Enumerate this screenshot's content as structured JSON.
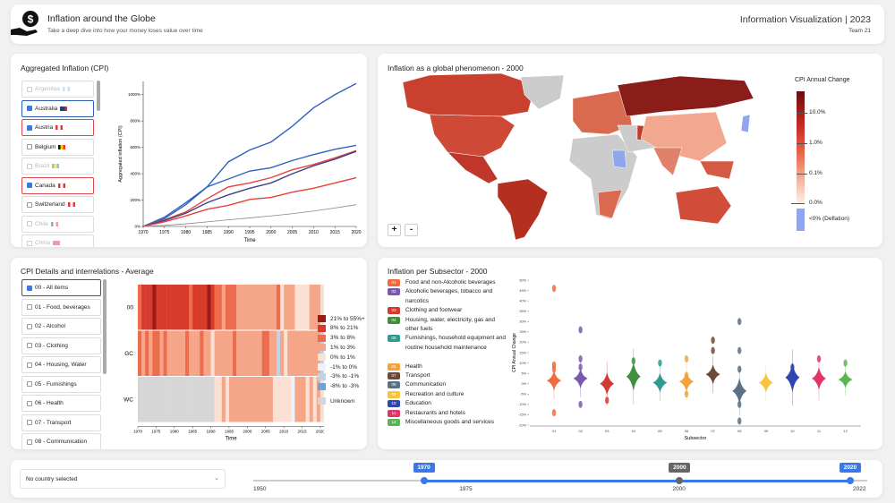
{
  "header": {
    "title": "Inflation around the Globe",
    "subtitle": "Take a deep dive into how your money loses value over time",
    "course": "Information Visualization | 2023",
    "team": "Team 21",
    "logo_icon": "money-hand-icon"
  },
  "aggregated": {
    "title": "Aggregated Inflation (CPI)",
    "countries": [
      {
        "name": "Argentina",
        "state": "disabled",
        "flag": [
          "#8ec5ea",
          "#fff",
          "#8ec5ea"
        ]
      },
      {
        "name": "Australia",
        "state": "checked",
        "border": "#2a5db0",
        "flag": [
          "#1c3c8c",
          "#1c3c8c",
          "#c33"
        ]
      },
      {
        "name": "Austria",
        "state": "checked",
        "border": "#e0474c",
        "flag": [
          "#e33",
          "#fff",
          "#e33"
        ]
      },
      {
        "name": "Belgium",
        "state": "unchecked",
        "flag": [
          "#111",
          "#f5d000",
          "#e33"
        ]
      },
      {
        "name": "Brazil",
        "state": "disabled",
        "flag": [
          "#2a9a3a",
          "#f5d000",
          "#2a9a3a"
        ]
      },
      {
        "name": "Canada",
        "state": "checked",
        "border": "#e0474c",
        "flag": [
          "#e33",
          "#fff",
          "#e33"
        ]
      },
      {
        "name": "Switzerland",
        "state": "unchecked",
        "flag": [
          "#e33",
          "#fff",
          "#e33"
        ]
      },
      {
        "name": "Chile",
        "state": "disabled",
        "flag": [
          "#2a4ca8",
          "#fff",
          "#e33"
        ]
      },
      {
        "name": "China",
        "state": "disabled",
        "flag": [
          "#e33",
          "#e33",
          "#e33"
        ]
      }
    ],
    "chart_data": {
      "type": "line",
      "xlabel": "Time",
      "ylabel": "Aggregated inflation (CPI)",
      "x": [
        1970,
        1975,
        1980,
        1985,
        1990,
        1995,
        2000,
        2005,
        2010,
        2015,
        2020
      ],
      "xticks": [
        "1970",
        "1975",
        "1980",
        "1985",
        "1990",
        "1995",
        "2000",
        "2005",
        "2010",
        "2015",
        "2020"
      ],
      "yticks": [
        "0%",
        "200%",
        "400%",
        "600%",
        "800%",
        "1000%"
      ],
      "ylim": [
        0,
        1100
      ],
      "series": [
        {
          "color": "#2f62c0",
          "values": [
            0,
            60,
            165,
            300,
            490,
            580,
            640,
            760,
            900,
            1000,
            1085
          ]
        },
        {
          "color": "#2f62c0",
          "values": [
            0,
            70,
            180,
            300,
            360,
            420,
            445,
            500,
            545,
            585,
            615
          ]
        },
        {
          "color": "#e8403a",
          "values": [
            0,
            50,
            110,
            210,
            300,
            330,
            370,
            430,
            470,
            520,
            575
          ]
        },
        {
          "color": "#3a3f8a",
          "values": [
            0,
            45,
            100,
            180,
            240,
            290,
            330,
            400,
            460,
            510,
            570
          ]
        },
        {
          "color": "#e8403a",
          "values": [
            0,
            35,
            80,
            130,
            160,
            205,
            220,
            260,
            290,
            330,
            370
          ]
        },
        {
          "color": "#888",
          "values": [
            0,
            8,
            20,
            35,
            50,
            65,
            80,
            97,
            117,
            140,
            165
          ]
        }
      ]
    }
  },
  "map": {
    "title": "Inflation as a global phenomenon - 2000",
    "legend_title": "CPI Annual Change",
    "legend_ticks": [
      "10.0%",
      "1.0%",
      "0.1%",
      "0.0%"
    ],
    "deflation_label": "<0% (Deflation)",
    "zoom_in": "+",
    "zoom_out": "-",
    "colors": {
      "high": "#6b0d0d",
      "mid": "#e0503c",
      "low": "#fbe8e0",
      "deflation": "#8fa6ef",
      "unknown": "#cccccc"
    }
  },
  "cpi_details": {
    "title": "CPI Details and interrelations - Average",
    "items": [
      {
        "label": "00 - All items",
        "checked": true
      },
      {
        "label": "01 - Food, beverages",
        "checked": false
      },
      {
        "label": "02 - Alcohol",
        "checked": false
      },
      {
        "label": "03 - Clothing",
        "checked": false
      },
      {
        "label": "04 - Housing, Water",
        "checked": false
      },
      {
        "label": "05 - Furnishings",
        "checked": false
      },
      {
        "label": "06 - Health",
        "checked": false
      },
      {
        "label": "07 - Transport",
        "checked": false
      },
      {
        "label": "08 - Communication",
        "checked": false
      }
    ],
    "chart_data": {
      "type": "heatmap",
      "xlabel": "Time",
      "xticks": [
        "1970",
        "1975",
        "1980",
        "1985",
        "1990",
        "1995",
        "2000",
        "2005",
        "2010",
        "2015",
        "2020"
      ],
      "rows": [
        "00",
        "GC",
        "WC"
      ],
      "years_from": 1970,
      "legend": [
        {
          "label": "21% to 55%+",
          "color": "#9b1c17"
        },
        {
          "label": "8% to 21%",
          "color": "#d63b2c"
        },
        {
          "label": "3% to 8%",
          "color": "#ee6c4d"
        },
        {
          "label": "1% to 3%",
          "color": "#f5a588"
        },
        {
          "label": "0% to 1%",
          "color": "#fbe0d4"
        },
        {
          "label": "-1% to 0%",
          "color": "#eef2fb"
        },
        {
          "label": "-3% to -1%",
          "color": "#bcd3ea"
        },
        {
          "label": "-8% to -3%",
          "color": "#6fa3d5"
        },
        {
          "label": "Unknown",
          "color": "#d6d6d6"
        }
      ],
      "values": [
        [
          2,
          1,
          1,
          1,
          0,
          1,
          1,
          1,
          1,
          1,
          1,
          1,
          1,
          1,
          2,
          1,
          1,
          1,
          1,
          0,
          1,
          2,
          2,
          3,
          2,
          2,
          2,
          3,
          3,
          3,
          3,
          3,
          3,
          3,
          3,
          3,
          3,
          3,
          2,
          4,
          3,
          3,
          3,
          4,
          4,
          4,
          4,
          3,
          3,
          3,
          4
        ],
        [
          2,
          3,
          2,
          3,
          2,
          2,
          3,
          2,
          3,
          3,
          3,
          3,
          3,
          2,
          3,
          3,
          3,
          2,
          3,
          3,
          4,
          3,
          3,
          3,
          3,
          3,
          2,
          3,
          3,
          3,
          3,
          3,
          3,
          3,
          2,
          2,
          3,
          3,
          6,
          3,
          4,
          3,
          3,
          3,
          3,
          3,
          3,
          3,
          3,
          3,
          6
        ],
        [
          -1,
          -1,
          -1,
          -1,
          -1,
          -1,
          -1,
          -1,
          -1,
          -1,
          -1,
          -1,
          -1,
          -1,
          -1,
          -1,
          -1,
          -1,
          -1,
          -1,
          -1,
          4,
          4,
          3,
          4,
          3,
          3,
          3,
          3,
          3,
          3,
          3,
          3,
          3,
          3,
          3,
          3,
          4,
          4,
          4,
          4,
          4,
          5,
          3,
          3,
          3,
          4,
          3,
          4,
          3,
          4
        ]
      ]
    }
  },
  "subsector": {
    "title": "Inflation per Subsector - 2000",
    "legend": [
      {
        "code": "01",
        "label": "Food and non-Alcoholic beverages",
        "color": "#f06a3d"
      },
      {
        "code": "02",
        "label": "Alcoholic beverages, tobacco and narcotics",
        "color": "#7b58b0"
      },
      {
        "code": "03",
        "label": "Clothing and footwear",
        "color": "#d23a32"
      },
      {
        "code": "04",
        "label": "Housing, water, electricity, gas and other fuels",
        "color": "#3f8f3c"
      },
      {
        "code": "05",
        "label": "Furnishings, household equipment and routine household maintenance",
        "color": "#2e9b8e"
      },
      {
        "code": "06",
        "label": "Health",
        "color": "#f4a23a"
      },
      {
        "code": "07",
        "label": "Transport",
        "color": "#6b4a3a"
      },
      {
        "code": "08",
        "label": "Communication",
        "color": "#5a7185"
      },
      {
        "code": "09",
        "label": "Recreation and culture",
        "color": "#f8c440"
      },
      {
        "code": "10",
        "label": "Education",
        "color": "#2f46b0"
      },
      {
        "code": "11",
        "label": "Restaurants and hotels",
        "color": "#e0366a"
      },
      {
        "code": "12",
        "label": "Miscellaneous goods and services",
        "color": "#5ab552"
      }
    ],
    "chart_data": {
      "type": "violin",
      "xlabel": "Subsector",
      "ylabel": "CPI Annual Change",
      "categories": [
        "01",
        "02",
        "03",
        "04",
        "05",
        "06",
        "07",
        "08",
        "09",
        "10",
        "11",
        "12"
      ],
      "ylim": [
        -20,
        50
      ],
      "yticks": [
        "-20%",
        "-15%",
        "-10%",
        "-5%",
        "0%",
        "5%",
        "10%",
        "15%",
        "20%",
        "25%",
        "30%",
        "35%",
        "40%",
        "45%",
        "50%"
      ],
      "medians": [
        1.5,
        2.5,
        0,
        3.5,
        0.5,
        1,
        4.5,
        -3.5,
        0.5,
        3,
        2.5,
        2
      ],
      "spread": [
        3,
        3,
        3.5,
        4.5,
        3,
        3,
        3,
        4,
        3,
        4.5,
        3.5,
        2.5
      ],
      "outliers": [
        [
          46,
          9,
          7,
          -14
        ],
        [
          26,
          12,
          8,
          -10
        ],
        [
          -8
        ],
        [
          11
        ],
        [
          10
        ],
        [
          12,
          4,
          -5
        ],
        [
          16,
          21
        ],
        [
          30,
          16,
          7,
          -10,
          -18
        ],
        [],
        [
          8
        ],
        [
          12
        ],
        [
          10
        ]
      ]
    }
  },
  "footer": {
    "country_select": "No country selected",
    "slider": {
      "min": 1950,
      "max": 2022,
      "start": 1970,
      "end": 2020,
      "current": 2000,
      "start_label": "1970",
      "end_label": "2020",
      "current_label": "2000",
      "ticks": [
        "1950",
        "1975",
        "2000",
        "2022"
      ]
    }
  }
}
